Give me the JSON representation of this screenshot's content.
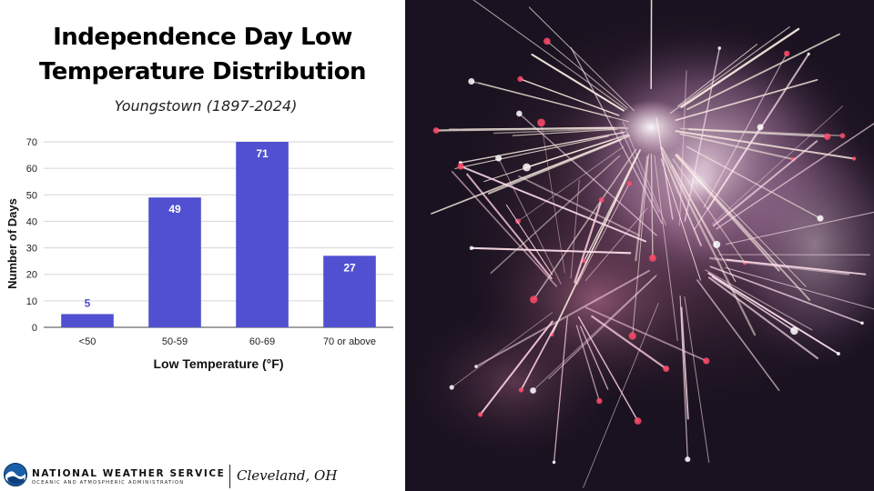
{
  "header": {
    "title_line1": "Independence Day Low",
    "title_line2": "Temperature Distribution",
    "subtitle": "Youngstown (1897-2024)"
  },
  "chart_data": {
    "type": "bar",
    "categories": [
      "<50",
      "50-59",
      "60-69",
      "70 or above"
    ],
    "values": [
      5,
      49,
      71,
      27
    ],
    "data_labels": [
      "5",
      "49",
      "71",
      "27"
    ],
    "xlabel": "Low Temperature (°F)",
    "ylabel": "Number of Days",
    "ylim": [
      0,
      70
    ],
    "yticks": [
      0,
      10,
      20,
      30,
      40,
      50,
      60,
      70
    ],
    "grid": true,
    "bar_color": "#5050d0",
    "label_colors": {
      "inside": "#ffffff",
      "outside": "#5050d0"
    }
  },
  "footer": {
    "agency_name": "NATIONAL WEATHER SERVICE",
    "agency_sub": "OCEANIC AND ATMOSPHERIC ADMINISTRATION",
    "office": "Cleveland, OH"
  },
  "photo": {
    "subject": "fireworks-photo",
    "background_color": "#1a1220"
  }
}
